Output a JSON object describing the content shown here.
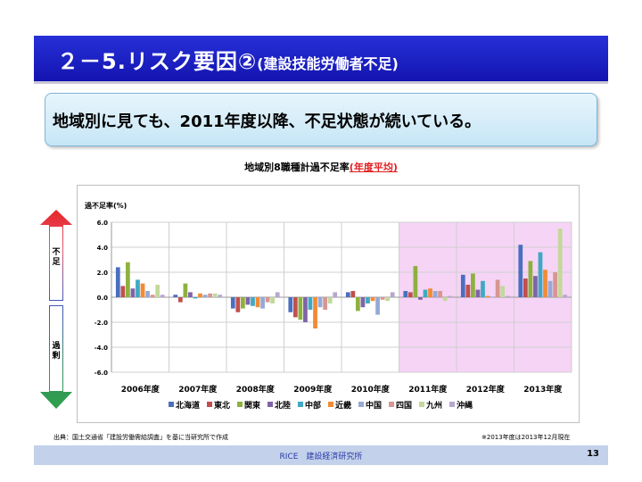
{
  "slide": {
    "title": "２－5.リスク要因②",
    "subtitle": "(建設技能労働者不足)",
    "callout": "地域別に見ても、2011年度以降、不足状態が続いている。",
    "source": "出典：国土交通省「建設労働需給調査」を基に当研究所で作成",
    "note": "※2013年度は2013年12月現在",
    "footer_org": "RICE　建設経済研究所",
    "page_number": "13",
    "arrow_up_label": "不足",
    "arrow_down_label": "過剰"
  },
  "chart_data": {
    "type": "bar",
    "title": "地域別8職種計過不足率",
    "title_highlight": "(年度平均)",
    "ylabel": "過不足率(%)",
    "ylim": [
      -6.0,
      6.0
    ],
    "yticks": [
      "6.0",
      "4.0",
      "2.0",
      "0.0",
      "-2.0",
      "-4.0",
      "-6.0"
    ],
    "categories": [
      "2006年度",
      "2007年度",
      "2008年度",
      "2009年度",
      "2010年度",
      "2011年度",
      "2012年度",
      "2013年度"
    ],
    "highlighted_categories": [
      "2011年度",
      "2012年度",
      "2013年度"
    ],
    "highlight_color": "#f0b8f0",
    "series": [
      {
        "name": "北海道",
        "color": "#4a6fbf",
        "values": [
          2.4,
          0.2,
          -0.9,
          -1.2,
          0.4,
          0.5,
          1.8,
          4.2
        ]
      },
      {
        "name": "東北",
        "color": "#c0504d",
        "values": [
          0.9,
          -0.4,
          -1.2,
          -1.6,
          0.5,
          0.4,
          1.0,
          1.5
        ]
      },
      {
        "name": "関東",
        "color": "#8db13f",
        "values": [
          2.8,
          1.1,
          -0.9,
          -1.8,
          -1.1,
          2.5,
          1.9,
          2.9
        ]
      },
      {
        "name": "北陸",
        "color": "#7f64a8",
        "values": [
          0.7,
          0.4,
          -0.6,
          -2.0,
          -0.8,
          -0.2,
          0.6,
          1.7
        ]
      },
      {
        "name": "中部",
        "color": "#3fa9c4",
        "values": [
          1.4,
          -0.1,
          -0.7,
          -1.0,
          -0.5,
          0.6,
          1.3,
          3.6
        ]
      },
      {
        "name": "近畿",
        "color": "#f28b34",
        "values": [
          1.1,
          0.3,
          -0.8,
          -2.5,
          -0.3,
          0.7,
          0.1,
          2.2
        ]
      },
      {
        "name": "中国",
        "color": "#95a9d6",
        "values": [
          0.5,
          0.2,
          -0.9,
          -0.8,
          -1.4,
          0.5,
          0.0,
          1.3
        ]
      },
      {
        "name": "四国",
        "color": "#d89592",
        "values": [
          0.2,
          0.3,
          -0.4,
          -1.0,
          -0.2,
          0.5,
          1.4,
          2.0
        ]
      },
      {
        "name": "九州",
        "color": "#c3d89a",
        "values": [
          1.0,
          0.3,
          -0.5,
          -0.5,
          -0.3,
          -0.3,
          0.9,
          5.5
        ]
      },
      {
        "name": "沖縄",
        "color": "#b7a7cf",
        "values": [
          0.2,
          0.2,
          0.4,
          0.4,
          0.4,
          0.1,
          0.1,
          0.2
        ]
      }
    ],
    "legend_position": "bottom",
    "grid": true
  }
}
